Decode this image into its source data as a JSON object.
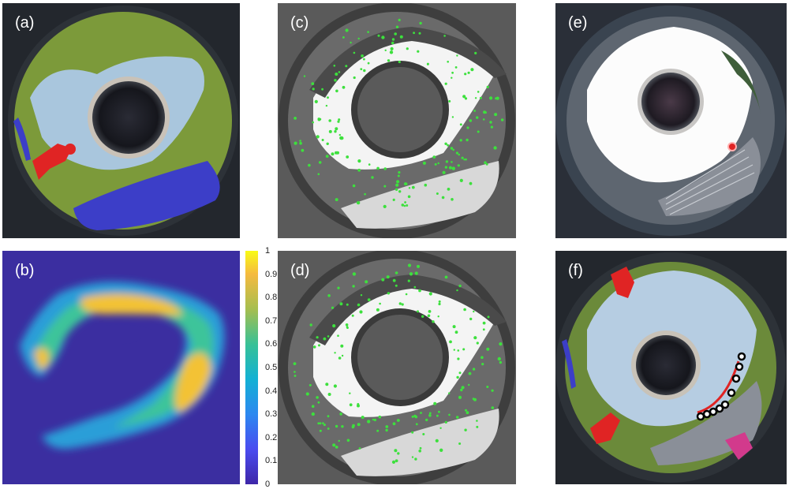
{
  "panels": [
    {
      "label": "(a)"
    },
    {
      "label": "(b)"
    },
    {
      "label": "(c)"
    },
    {
      "label": "(d)"
    },
    {
      "label": "(e)"
    },
    {
      "label": "(f)"
    }
  ],
  "colorbar": {
    "ticks": [
      "1",
      "0.9",
      "0.8",
      "0.7",
      "0.6",
      "0.5",
      "0.4",
      "0.3",
      "0.2",
      "0.1",
      "0"
    ]
  },
  "colors": {
    "vegetation": "#7c9a3a",
    "sky": "#a9c6dd",
    "car": "#3c3ec8",
    "person": "#e02424",
    "heatmap_bg": "#3b2ea0",
    "feature_points": "#3de03d"
  }
}
